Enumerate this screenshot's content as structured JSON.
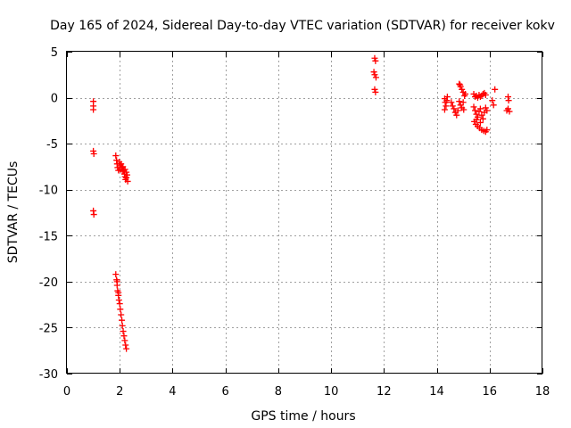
{
  "chart_data": {
    "type": "scatter",
    "title": "Day 165 of 2024, Sidereal Day-to-day VTEC variation (SDTVAR) for receiver kokv",
    "xlabel": "GPS time / hours",
    "ylabel": "SDTVAR / TECUs",
    "xlim": [
      0,
      18
    ],
    "ylim": [
      -30,
      5
    ],
    "xticks": [
      "0",
      "2",
      "4",
      "6",
      "8",
      "10",
      "12",
      "14",
      "16",
      "18"
    ],
    "yticks": [
      "5",
      "0",
      "-5",
      "-10",
      "-15",
      "-20",
      "-25",
      "-30"
    ],
    "grid": true,
    "marker": "plus",
    "color": "#ff0000",
    "series": [
      {
        "name": "SDTVAR",
        "points": [
          [
            1.0,
            -0.4
          ],
          [
            1.0,
            -0.9
          ],
          [
            1.0,
            -1.3
          ],
          [
            1.0,
            -5.8
          ],
          [
            1.02,
            -6.1
          ],
          [
            1.0,
            -12.3
          ],
          [
            1.02,
            -12.7
          ],
          [
            1.85,
            -6.3
          ],
          [
            1.88,
            -6.8
          ],
          [
            1.9,
            -7.2
          ],
          [
            1.92,
            -7.6
          ],
          [
            1.95,
            -7.9
          ],
          [
            1.98,
            -7.0
          ],
          [
            2.0,
            -7.4
          ],
          [
            2.02,
            -7.8
          ],
          [
            2.05,
            -7.2
          ],
          [
            2.08,
            -7.6
          ],
          [
            2.1,
            -8.0
          ],
          [
            2.12,
            -7.5
          ],
          [
            2.15,
            -7.9
          ],
          [
            2.18,
            -8.3
          ],
          [
            2.2,
            -8.6
          ],
          [
            2.22,
            -8.9
          ],
          [
            2.25,
            -8.1
          ],
          [
            2.28,
            -8.4
          ],
          [
            2.3,
            -9.1
          ],
          [
            2.2,
            -7.8
          ],
          [
            2.25,
            -8.7
          ],
          [
            1.85,
            -19.2
          ],
          [
            1.88,
            -19.8
          ],
          [
            1.9,
            -20.4
          ],
          [
            1.92,
            -21.0
          ],
          [
            1.95,
            -21.5
          ],
          [
            1.97,
            -22.0
          ],
          [
            2.0,
            -22.4
          ],
          [
            2.02,
            -23.0
          ],
          [
            2.05,
            -23.6
          ],
          [
            2.08,
            -24.2
          ],
          [
            2.1,
            -24.8
          ],
          [
            2.13,
            -25.4
          ],
          [
            2.16,
            -25.9
          ],
          [
            2.19,
            -26.4
          ],
          [
            2.22,
            -26.9
          ],
          [
            2.25,
            -27.3
          ],
          [
            1.9,
            -20.0
          ],
          [
            1.95,
            -21.2
          ],
          [
            11.65,
            4.3
          ],
          [
            11.68,
            4.0
          ],
          [
            11.62,
            2.8
          ],
          [
            11.65,
            2.5
          ],
          [
            11.7,
            2.2
          ],
          [
            11.65,
            0.9
          ],
          [
            11.68,
            0.6
          ],
          [
            14.3,
            -0.1
          ],
          [
            14.32,
            -0.5
          ],
          [
            14.35,
            -0.9
          ],
          [
            14.3,
            -1.3
          ],
          [
            14.4,
            0.1
          ],
          [
            14.38,
            -0.3
          ],
          [
            14.55,
            -0.5
          ],
          [
            14.6,
            -0.9
          ],
          [
            14.65,
            -1.2
          ],
          [
            14.7,
            -1.6
          ],
          [
            14.75,
            -1.9
          ],
          [
            14.8,
            -1.4
          ],
          [
            14.85,
            1.5
          ],
          [
            14.9,
            1.2
          ],
          [
            14.95,
            0.9
          ],
          [
            15.0,
            0.6
          ],
          [
            15.05,
            0.2
          ],
          [
            14.85,
            -0.4
          ],
          [
            14.9,
            -0.8
          ],
          [
            14.95,
            -1.1
          ],
          [
            15.0,
            -0.5
          ],
          [
            15.02,
            -1.3
          ],
          [
            14.88,
            1.4
          ],
          [
            15.08,
            0.4
          ],
          [
            15.4,
            0.4
          ],
          [
            15.45,
            0.1
          ],
          [
            15.5,
            0.2
          ],
          [
            15.55,
            0.0
          ],
          [
            15.6,
            0.3
          ],
          [
            15.65,
            0.1
          ],
          [
            15.7,
            0.2
          ],
          [
            15.75,
            0.4
          ],
          [
            15.8,
            0.5
          ],
          [
            15.85,
            0.3
          ],
          [
            15.4,
            -1.0
          ],
          [
            15.45,
            -1.4
          ],
          [
            15.5,
            -1.8
          ],
          [
            15.55,
            -2.1
          ],
          [
            15.6,
            -1.5
          ],
          [
            15.65,
            -1.2
          ],
          [
            15.7,
            -1.9
          ],
          [
            15.75,
            -2.3
          ],
          [
            15.8,
            -1.6
          ],
          [
            15.85,
            -1.1
          ],
          [
            15.9,
            -1.4
          ],
          [
            15.42,
            -2.6
          ],
          [
            15.48,
            -2.9
          ],
          [
            15.55,
            -3.1
          ],
          [
            15.62,
            -3.3
          ],
          [
            15.7,
            -3.5
          ],
          [
            15.78,
            -3.6
          ],
          [
            15.85,
            -3.7
          ],
          [
            15.9,
            -3.5
          ],
          [
            15.5,
            -2.4
          ],
          [
            15.65,
            -2.7
          ],
          [
            16.1,
            -0.3
          ],
          [
            16.15,
            -0.8
          ],
          [
            16.2,
            0.9
          ],
          [
            16.7,
            0.1
          ],
          [
            16.72,
            -0.3
          ],
          [
            16.7,
            -1.2
          ],
          [
            16.75,
            -1.5
          ],
          [
            16.65,
            -1.4
          ]
        ]
      }
    ]
  }
}
